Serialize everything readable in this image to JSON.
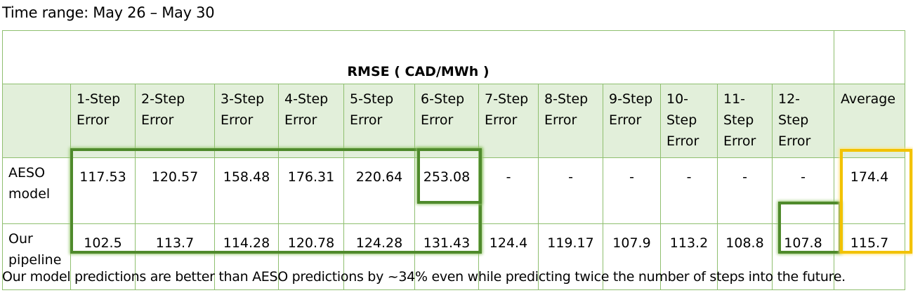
{
  "time_range": "Time range: May 26 – May 30",
  "table": {
    "title": "RMSE ( CAD/MWh )",
    "headers": [
      [
        "1-Step",
        "Error"
      ],
      [
        "2-Step",
        "Error"
      ],
      [
        "3-Step",
        "Error"
      ],
      [
        "4-Step",
        "Error"
      ],
      [
        "5-Step",
        "Error"
      ],
      [
        "6-Step",
        "Error"
      ],
      [
        "7-Step",
        "Error"
      ],
      [
        "8-Step",
        "Error"
      ],
      [
        "9-Step",
        "Error"
      ],
      [
        "10-",
        "Step",
        "Error"
      ],
      [
        "11-",
        "Step",
        "Error"
      ],
      [
        "12-",
        "Step",
        "Error"
      ],
      [
        "Average"
      ]
    ],
    "rows": [
      {
        "label": [
          "AESO",
          "model"
        ],
        "values": [
          "117.53",
          "120.57",
          "158.48",
          "176.31",
          "220.64",
          "253.08",
          "-",
          "-",
          "-",
          "-",
          "-",
          "-"
        ],
        "average": "174.4"
      },
      {
        "label": [
          "Our",
          "pipeline"
        ],
        "values": [
          "102.5",
          "113.7",
          "114.28",
          "120.78",
          "124.28",
          "131.43",
          "124.4",
          "119.17",
          "107.9",
          "113.2",
          "108.8",
          "107.8"
        ],
        "average": "115.7"
      }
    ]
  },
  "highlight_colors": {
    "green": "#4f8a2c",
    "yellow": "#f2c200",
    "header_fill": "#e2efda",
    "grid": "#8fbf6f"
  },
  "caption": "Our model predictions are better than AESO predictions by ~34% even while predicting twice the number of steps into the future."
}
